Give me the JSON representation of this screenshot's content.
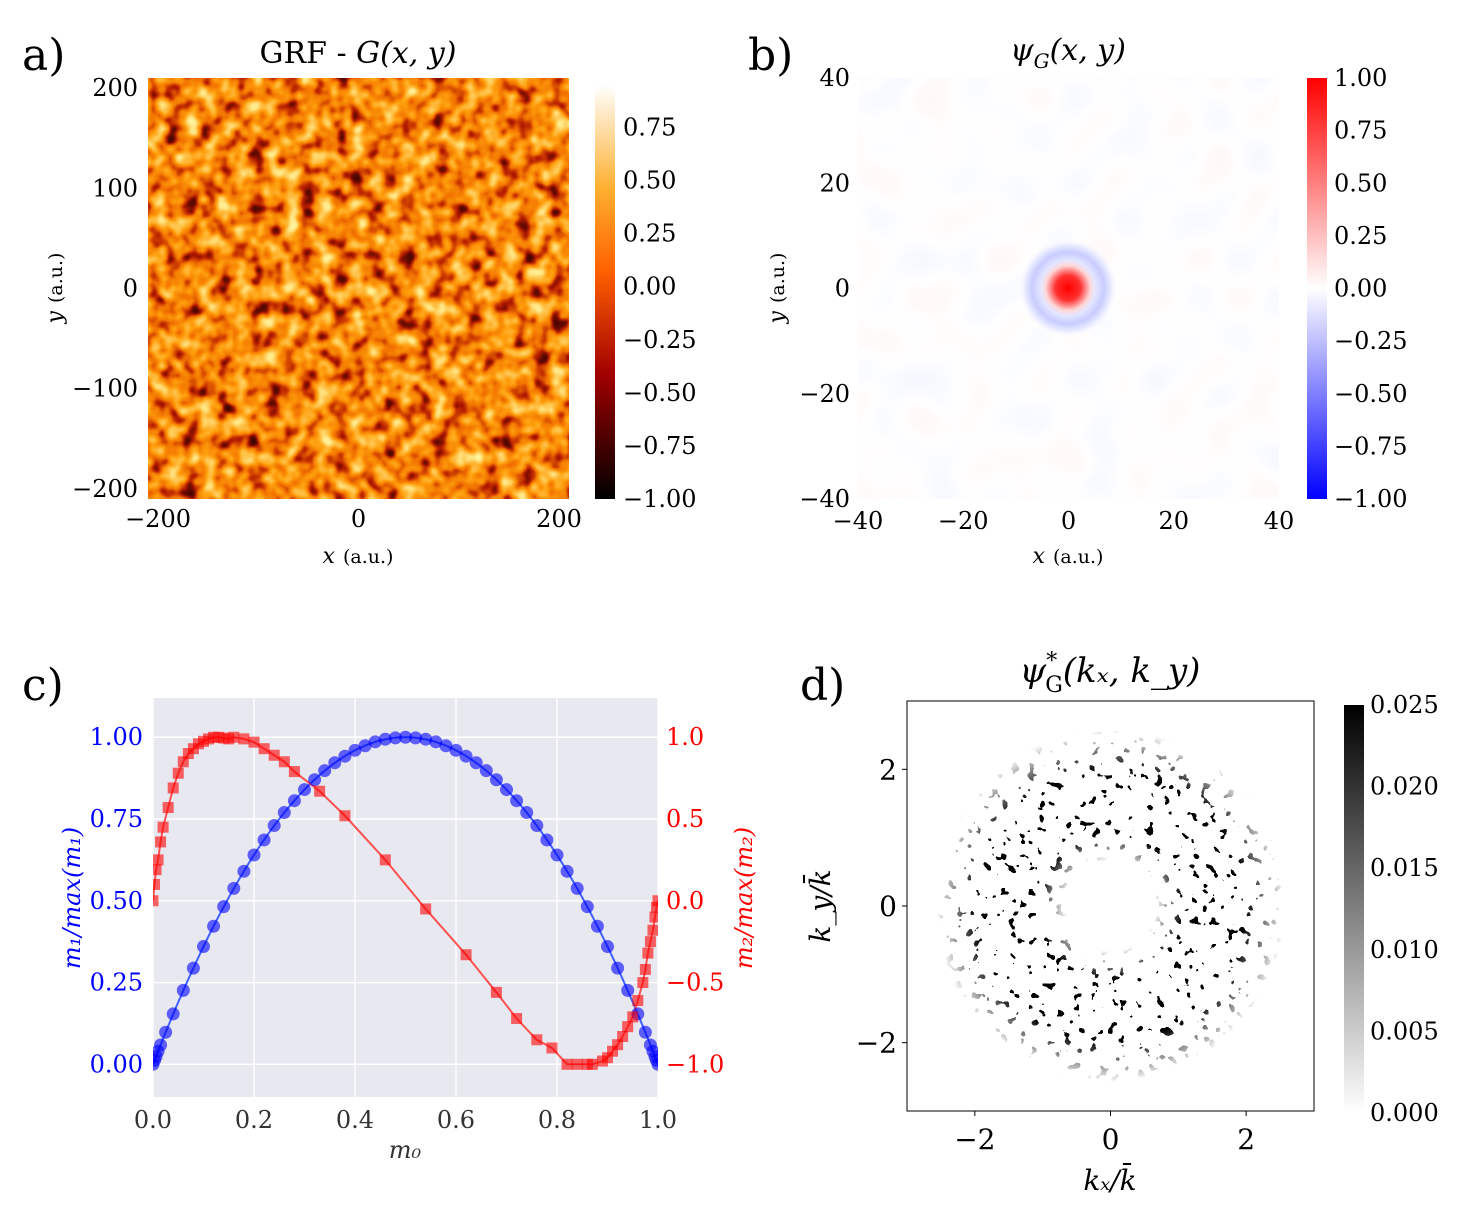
{
  "colors": {
    "blue": "#0000ff",
    "red": "#ff0000",
    "panel_c_bg": "#e8e8f0",
    "black": "#000000"
  },
  "chart_data": [
    {
      "id": "a",
      "panel_label": "a)",
      "type": "heatmap",
      "title_prefix": "GRF - ",
      "title_func": "G(x, y)",
      "x_var": "x",
      "y_var": "y",
      "unit": "(a.u.)",
      "xlim": [
        -210,
        210
      ],
      "ylim": [
        -210,
        210
      ],
      "x_ticks": [
        -200,
        0,
        200
      ],
      "x_tick_labels": [
        "−200",
        "0",
        "200"
      ],
      "y_ticks": [
        -200,
        -100,
        0,
        100,
        200
      ],
      "y_tick_labels": [
        "−200",
        "−100",
        "0",
        "100",
        "200"
      ],
      "colormap": "afmhot",
      "colorbar_range": [
        -1.0,
        0.95
      ],
      "colorbar_ticks": [
        0.75,
        0.5,
        0.25,
        0.0,
        -0.25,
        -0.5,
        -0.75,
        -1.0
      ],
      "colorbar_tick_labels": [
        "0.75",
        "0.50",
        "0.25",
        "0.00",
        "−0.25",
        "−0.50",
        "−0.75",
        "−1.00"
      ]
    },
    {
      "id": "b",
      "panel_label": "b)",
      "type": "heatmap",
      "title": "ψ",
      "title_sub": "G",
      "title_args": "(x, y)",
      "x_var": "x",
      "y_var": "y",
      "unit": "(a.u.)",
      "xlim": [
        -40,
        40
      ],
      "ylim": [
        -40,
        40
      ],
      "x_ticks": [
        -40,
        -20,
        0,
        20,
        40
      ],
      "x_tick_labels": [
        "−40",
        "−20",
        "0",
        "20",
        "40"
      ],
      "y_ticks": [
        -40,
        -20,
        0,
        20,
        40
      ],
      "y_tick_labels": [
        "−40",
        "−20",
        "0",
        "20",
        "40"
      ],
      "colormap": "bwr",
      "colorbar_range": [
        -1.0,
        1.0
      ],
      "colorbar_ticks": [
        1.0,
        0.75,
        0.5,
        0.25,
        0.0,
        -0.25,
        -0.5,
        -0.75,
        -1.0
      ],
      "colorbar_tick_labels": [
        "1.00",
        "0.75",
        "0.50",
        "0.25",
        "0.00",
        "−0.25",
        "−0.50",
        "−0.75",
        "−1.00"
      ]
    },
    {
      "id": "c",
      "panel_label": "c)",
      "type": "scatter",
      "xlabel": "m₀",
      "ylabel_left": "m₁/max(m₁)",
      "ylabel_right": "m₂/max(m₂)",
      "xlim": [
        0.0,
        1.0
      ],
      "ylim_left": [
        -0.1,
        1.12
      ],
      "ylim_right": [
        -1.2,
        1.24
      ],
      "x_ticks": [
        0.0,
        0.2,
        0.4,
        0.6,
        0.8,
        1.0
      ],
      "x_tick_labels": [
        "0.0",
        "0.2",
        "0.4",
        "0.6",
        "0.8",
        "1.0"
      ],
      "y_left_ticks": [
        0.0,
        0.25,
        0.5,
        0.75,
        1.0
      ],
      "y_left_tick_labels": [
        "0.00",
        "0.25",
        "0.50",
        "0.75",
        "1.00"
      ],
      "y_right_ticks": [
        1.0,
        0.5,
        0.0,
        -0.5,
        -1.0
      ],
      "y_right_tick_labels": [
        "1.0",
        "0.5",
        "0.0",
        "−0.5",
        "−1.0"
      ],
      "series": [
        {
          "name": "m1",
          "axis": "left",
          "marker": "circle",
          "x": [
            0.0,
            0.003,
            0.006,
            0.01,
            0.015,
            0.025,
            0.04,
            0.06,
            0.08,
            0.1,
            0.12,
            0.14,
            0.16,
            0.18,
            0.2,
            0.22,
            0.24,
            0.26,
            0.28,
            0.3,
            0.32,
            0.34,
            0.36,
            0.38,
            0.4,
            0.42,
            0.44,
            0.46,
            0.48,
            0.5,
            0.52,
            0.54,
            0.56,
            0.58,
            0.6,
            0.62,
            0.64,
            0.66,
            0.68,
            0.7,
            0.72,
            0.74,
            0.76,
            0.78,
            0.8,
            0.82,
            0.84,
            0.86,
            0.88,
            0.9,
            0.92,
            0.94,
            0.96,
            0.975,
            0.985,
            0.99,
            0.994,
            0.997,
            1.0
          ],
          "y": [
            0.0,
            0.012,
            0.024,
            0.04,
            0.059,
            0.098,
            0.154,
            0.226,
            0.294,
            0.36,
            0.422,
            0.482,
            0.538,
            0.59,
            0.64,
            0.686,
            0.73,
            0.77,
            0.806,
            0.84,
            0.87,
            0.898,
            0.922,
            0.942,
            0.96,
            0.974,
            0.986,
            0.994,
            0.998,
            1.0,
            0.998,
            0.994,
            0.986,
            0.974,
            0.96,
            0.942,
            0.922,
            0.898,
            0.87,
            0.84,
            0.806,
            0.77,
            0.73,
            0.686,
            0.64,
            0.59,
            0.538,
            0.482,
            0.422,
            0.36,
            0.294,
            0.226,
            0.154,
            0.098,
            0.059,
            0.04,
            0.024,
            0.012,
            0.0
          ]
        },
        {
          "name": "m2",
          "axis": "right",
          "marker": "square",
          "x": [
            0.0,
            0.003,
            0.006,
            0.01,
            0.015,
            0.02,
            0.03,
            0.04,
            0.05,
            0.06,
            0.07,
            0.08,
            0.09,
            0.1,
            0.11,
            0.12,
            0.13,
            0.14,
            0.15,
            0.16,
            0.18,
            0.2,
            0.22,
            0.24,
            0.26,
            0.28,
            0.33,
            0.38,
            0.46,
            0.54,
            0.62,
            0.68,
            0.72,
            0.76,
            0.79,
            0.82,
            0.84,
            0.86,
            0.87,
            0.89,
            0.9,
            0.91,
            0.92,
            0.93,
            0.94,
            0.95,
            0.96,
            0.97,
            0.975,
            0.98,
            0.985,
            0.99,
            0.994,
            0.997,
            1.0
          ],
          "y": [
            0.0,
            0.1,
            0.19,
            0.25,
            0.36,
            0.45,
            0.57,
            0.69,
            0.78,
            0.85,
            0.9,
            0.93,
            0.96,
            0.975,
            0.99,
            1.0,
            1.0,
            0.995,
            0.99,
            1.0,
            0.99,
            0.97,
            0.93,
            0.89,
            0.85,
            0.79,
            0.67,
            0.52,
            0.25,
            -0.05,
            -0.33,
            -0.56,
            -0.72,
            -0.85,
            -0.9,
            -1.0,
            -1.0,
            -1.0,
            -1.0,
            -0.98,
            -0.96,
            -0.92,
            -0.88,
            -0.83,
            -0.77,
            -0.71,
            -0.61,
            -0.5,
            -0.42,
            -0.32,
            -0.25,
            -0.18,
            -0.1,
            -0.04,
            0.0
          ]
        }
      ]
    },
    {
      "id": "d",
      "panel_label": "d)",
      "type": "heatmap",
      "title": "ψ",
      "title_sup": "*",
      "title_sub": "G",
      "title_args": "(kₓ, k_y)",
      "xlabel": "kₓ/k̄",
      "ylabel": "k_y/k̄",
      "xlim": [
        -3.0,
        3.0
      ],
      "ylim": [
        -3.0,
        3.0
      ],
      "x_ticks": [
        -2,
        0,
        2
      ],
      "x_tick_labels": [
        "−2",
        "0",
        "2"
      ],
      "y_ticks": [
        2,
        0,
        -2
      ],
      "y_tick_labels": [
        "2",
        "0",
        "−2"
      ],
      "colormap": "gray_r",
      "ring_inner_radius": 0.8,
      "ring_outer_radius": 2.2,
      "colorbar_range": [
        0.0,
        0.025
      ],
      "colorbar_ticks": [
        0.025,
        0.02,
        0.015,
        0.01,
        0.005,
        0.0
      ],
      "colorbar_tick_labels": [
        "0.025",
        "0.020",
        "0.015",
        "0.010",
        "0.005",
        "0.000"
      ]
    }
  ]
}
